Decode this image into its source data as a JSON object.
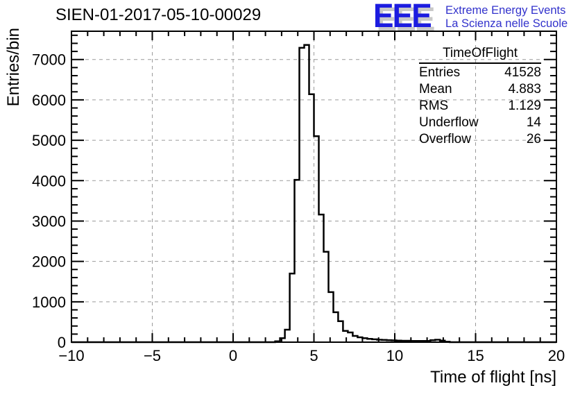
{
  "header": {
    "title": "SIEN-01-2017-05-10-00029"
  },
  "logo": {
    "acronym": "EEE",
    "line1": "Extreme Energy Events",
    "line2": "La Scienza nelle Scuole",
    "blue": "#1c1ce0",
    "shadow_gray": "#c8c8c8",
    "text_blue": "#3232cc"
  },
  "stats": {
    "title": "TimeOfFlight",
    "rows": [
      {
        "label": "Entries",
        "value": "41528"
      },
      {
        "label": "Mean",
        "value": "4.883"
      },
      {
        "label": "RMS",
        "value": "1.129"
      },
      {
        "label": "Underflow",
        "value": "14"
      },
      {
        "label": "Overflow",
        "value": "26"
      }
    ]
  },
  "chart_data": {
    "type": "bar",
    "title": "SIEN-01-2017-05-10-00029",
    "xlabel": "Time of flight [ns]",
    "ylabel": "Entries/bin",
    "xlim": [
      -10,
      20
    ],
    "ylim": [
      0,
      7700
    ],
    "grid": true,
    "legend": "none",
    "bin_width": 0.3,
    "bins": [
      [
        2.6,
        20
      ],
      [
        2.9,
        100
      ],
      [
        3.2,
        310
      ],
      [
        3.5,
        1700
      ],
      [
        3.8,
        4020
      ],
      [
        4.1,
        7290
      ],
      [
        4.4,
        7360
      ],
      [
        4.7,
        6140
      ],
      [
        5.0,
        5100
      ],
      [
        5.3,
        3160
      ],
      [
        5.6,
        2240
      ],
      [
        5.9,
        1240
      ],
      [
        6.2,
        740
      ],
      [
        6.5,
        520
      ],
      [
        6.8,
        280
      ],
      [
        7.1,
        240
      ],
      [
        7.4,
        155
      ],
      [
        7.7,
        120
      ],
      [
        8.0,
        100
      ],
      [
        8.3,
        80
      ],
      [
        8.6,
        70
      ],
      [
        8.9,
        60
      ],
      [
        9.2,
        55
      ],
      [
        9.5,
        50
      ],
      [
        9.8,
        45
      ],
      [
        10.1,
        40
      ],
      [
        10.4,
        35
      ],
      [
        10.7,
        35
      ],
      [
        11.0,
        30
      ],
      [
        11.3,
        30
      ],
      [
        11.6,
        30
      ],
      [
        11.9,
        30
      ],
      [
        12.2,
        50
      ],
      [
        12.5,
        60
      ],
      [
        12.8,
        40
      ],
      [
        13.1,
        10
      ]
    ],
    "xticks": {
      "major": [
        -10,
        -5,
        0,
        5,
        10,
        15,
        20
      ],
      "minor_step": 1,
      "labels": [
        "−10",
        "−5",
        "0",
        "5",
        "10",
        "15",
        "20"
      ]
    },
    "yticks": {
      "major": [
        0,
        1000,
        2000,
        3000,
        4000,
        5000,
        6000,
        7000
      ],
      "minor_step": 200,
      "labels": [
        "0",
        "1000",
        "2000",
        "3000",
        "4000",
        "5000",
        "6000",
        "7000"
      ]
    },
    "colors": {
      "axis": "#000000",
      "grid": "#9a9a9a",
      "histogram_line": "#000000",
      "tick_label": "#000000"
    }
  }
}
